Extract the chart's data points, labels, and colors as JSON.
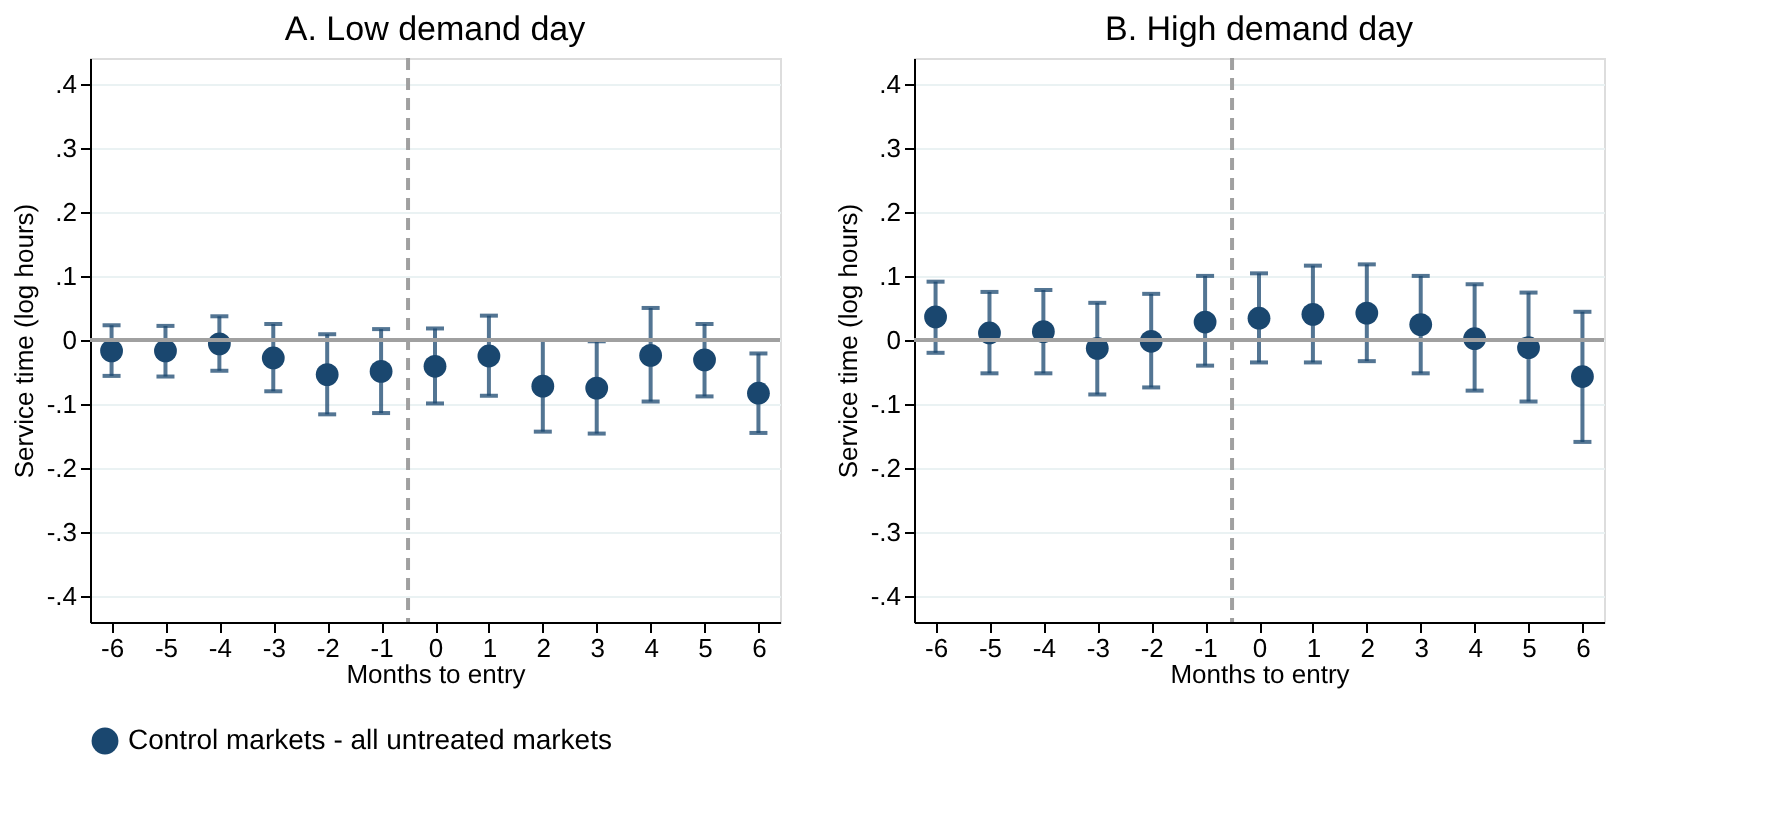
{
  "chart_data": [
    {
      "type": "scatter",
      "title": "A. Low demand day",
      "xlabel": "Months to entry",
      "ylabel": "Service time (log hours)",
      "x": [
        -6,
        -5,
        -4,
        -3,
        -2,
        -1,
        0,
        1,
        2,
        3,
        4,
        5,
        6
      ],
      "series": [
        {
          "name": "Control markets - all untreated markets",
          "color": "#1a476f",
          "values": [
            -0.017,
            -0.017,
            -0.006,
            -0.028,
            -0.054,
            -0.049,
            -0.041,
            -0.025,
            -0.072,
            -0.075,
            -0.024,
            -0.031,
            -0.083
          ],
          "errors": [
            [
              -0.056,
              0.023
            ],
            [
              -0.057,
              0.022
            ],
            [
              -0.048,
              0.037
            ],
            [
              -0.08,
              0.025
            ],
            [
              -0.116,
              0.009
            ],
            [
              -0.114,
              0.017
            ],
            [
              -0.099,
              0.018
            ],
            [
              -0.087,
              0.038
            ],
            [
              -0.143,
              0.0
            ],
            [
              -0.146,
              -0.002
            ],
            [
              -0.096,
              0.05
            ],
            [
              -0.088,
              0.025
            ],
            [
              -0.145,
              -0.021
            ]
          ]
        }
      ],
      "xlim": [
        -6.4,
        6.4
      ],
      "xticks": [
        -6,
        -5,
        -4,
        -3,
        -2,
        -1,
        0,
        1,
        2,
        3,
        4,
        5,
        6
      ],
      "ylim": [
        -0.44,
        0.44
      ],
      "yticks": [
        {
          "value": -0.4,
          "label": "-.4"
        },
        {
          "value": -0.3,
          "label": "-.3"
        },
        {
          "value": -0.2,
          "label": "-.2"
        },
        {
          "value": -0.1,
          "label": "-.1"
        },
        {
          "value": 0,
          "label": "0"
        },
        {
          "value": 0.1,
          "label": ".1"
        },
        {
          "value": 0.2,
          "label": ".2"
        },
        {
          "value": 0.3,
          "label": ".3"
        },
        {
          "value": 0.4,
          "label": ".4"
        }
      ],
      "grid": "y",
      "marker": "circle",
      "legend": "bottom",
      "ref_lines": [
        {
          "axis": "x",
          "value": -0.5,
          "color": "#a0a0a0",
          "line_style": "dashed"
        },
        {
          "axis": "y",
          "value": 0,
          "color": "#a0a0a0",
          "line_style": "solid"
        }
      ]
    },
    {
      "type": "scatter",
      "title": "B. High demand day",
      "xlabel": "Months to entry",
      "ylabel": "Service time (log hours)",
      "x": [
        -6,
        -5,
        -4,
        -3,
        -2,
        -1,
        0,
        1,
        2,
        3,
        4,
        5,
        6
      ],
      "series": [
        {
          "name": "Control markets - all untreated markets",
          "color": "#1a476f",
          "values": [
            0.036,
            0.011,
            0.013,
            -0.013,
            -0.002,
            0.028,
            0.034,
            0.04,
            0.042,
            0.024,
            0.002,
            -0.012,
            -0.057
          ],
          "errors": [
            [
              -0.02,
              0.091
            ],
            [
              -0.052,
              0.075
            ],
            [
              -0.052,
              0.078
            ],
            [
              -0.085,
              0.058
            ],
            [
              -0.074,
              0.072
            ],
            [
              -0.04,
              0.1
            ],
            [
              -0.035,
              0.104
            ],
            [
              -0.035,
              0.116
            ],
            [
              -0.033,
              0.118
            ],
            [
              -0.052,
              0.1
            ],
            [
              -0.079,
              0.087
            ],
            [
              -0.096,
              0.074
            ],
            [
              -0.159,
              0.044
            ]
          ]
        }
      ],
      "xlim": [
        -6.4,
        6.4
      ],
      "xticks": [
        -6,
        -5,
        -4,
        -3,
        -2,
        -1,
        0,
        1,
        2,
        3,
        4,
        5,
        6
      ],
      "ylim": [
        -0.44,
        0.44
      ],
      "yticks": [
        {
          "value": -0.4,
          "label": "-.4"
        },
        {
          "value": -0.3,
          "label": "-.3"
        },
        {
          "value": -0.2,
          "label": "-.2"
        },
        {
          "value": -0.1,
          "label": "-.1"
        },
        {
          "value": 0,
          "label": "0"
        },
        {
          "value": 0.1,
          "label": ".1"
        },
        {
          "value": 0.2,
          "label": ".2"
        },
        {
          "value": 0.3,
          "label": ".3"
        },
        {
          "value": 0.4,
          "label": ".4"
        }
      ],
      "grid": "y",
      "marker": "circle",
      "legend": "bottom",
      "ref_lines": [
        {
          "axis": "x",
          "value": -0.5,
          "color": "#a0a0a0",
          "line_style": "dashed"
        },
        {
          "axis": "y",
          "value": 0,
          "color": "#a0a0a0",
          "line_style": "solid"
        }
      ]
    }
  ]
}
